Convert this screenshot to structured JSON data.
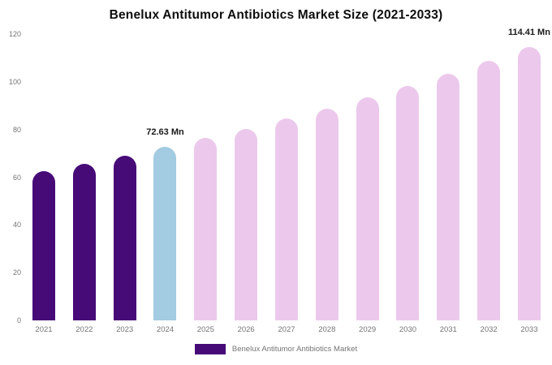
{
  "chart": {
    "title": "Benelux Antitumor Antibiotics Market Size (2021-2033)",
    "legend": "Benelux Antitumor Antibiotics Market"
  },
  "colors": {
    "historical": "#470b78",
    "highlight": "#a3cbe2",
    "forecast": "#ecc9ec",
    "legend_swatch": "#470b78",
    "title_text": "#0d0d0d",
    "axis_text": "#757575"
  },
  "chart_data": {
    "type": "bar",
    "title": "Benelux Antitumor Antibiotics Market Size (2021-2033)",
    "xlabel": "",
    "ylabel": "",
    "ylim": [
      0,
      120
    ],
    "yticks": [
      0,
      20,
      40,
      60,
      80,
      100,
      120
    ],
    "grid": false,
    "legend_position": "bottom",
    "unit": "Mn",
    "categories": [
      "2021",
      "2022",
      "2023",
      "2024",
      "2025",
      "2026",
      "2027",
      "2028",
      "2029",
      "2030",
      "2031",
      "2032",
      "2033"
    ],
    "values": [
      62.4,
      65.6,
      69.0,
      72.63,
      76.4,
      80.3,
      84.5,
      88.9,
      93.5,
      98.3,
      103.4,
      108.7,
      114.41
    ],
    "data_labels": [
      {
        "year": "2024",
        "text": "72.63 Mn"
      },
      {
        "year": "2033",
        "text": "114.41 Mn"
      }
    ],
    "bars": [
      {
        "year": "2021",
        "value": 62.4,
        "color": "#470b78",
        "label": ""
      },
      {
        "year": "2022",
        "value": 65.6,
        "color": "#470b78",
        "label": ""
      },
      {
        "year": "2023",
        "value": 69.0,
        "color": "#470b78",
        "label": ""
      },
      {
        "year": "2024",
        "value": 72.63,
        "color": "#a3cbe2",
        "label": "72.63 Mn"
      },
      {
        "year": "2025",
        "value": 76.4,
        "color": "#ecc9ec",
        "label": ""
      },
      {
        "year": "2026",
        "value": 80.3,
        "color": "#ecc9ec",
        "label": ""
      },
      {
        "year": "2027",
        "value": 84.5,
        "color": "#ecc9ec",
        "label": ""
      },
      {
        "year": "2028",
        "value": 88.9,
        "color": "#ecc9ec",
        "label": ""
      },
      {
        "year": "2029",
        "value": 93.5,
        "color": "#ecc9ec",
        "label": ""
      },
      {
        "year": "2030",
        "value": 98.3,
        "color": "#ecc9ec",
        "label": ""
      },
      {
        "year": "2031",
        "value": 103.4,
        "color": "#ecc9ec",
        "label": ""
      },
      {
        "year": "2032",
        "value": 108.7,
        "color": "#ecc9ec",
        "label": ""
      },
      {
        "year": "2033",
        "value": 114.41,
        "color": "#ecc9ec",
        "label": "114.41 Mn"
      }
    ]
  }
}
